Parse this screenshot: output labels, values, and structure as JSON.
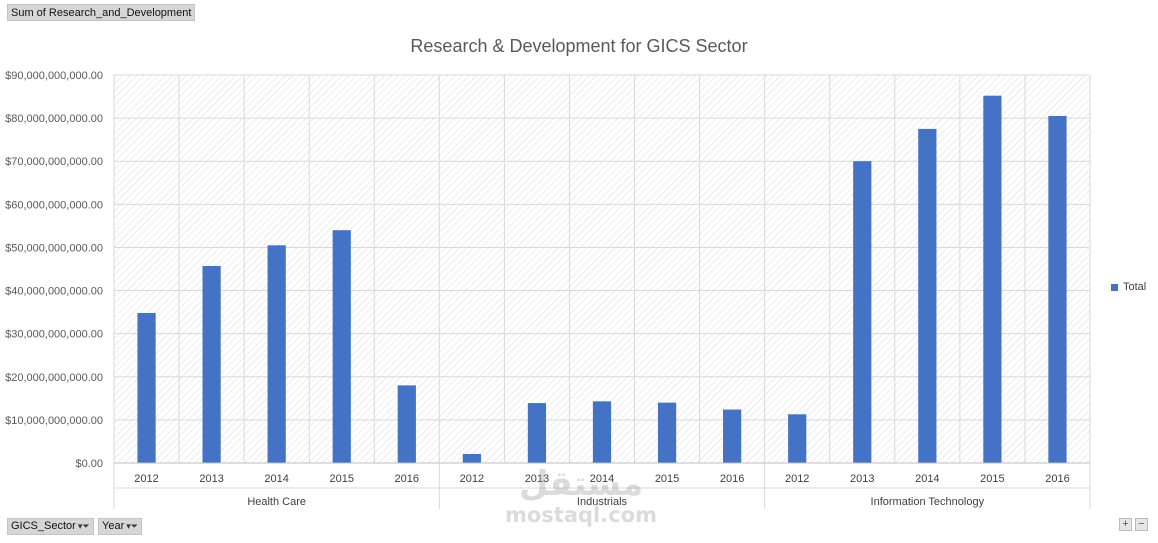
{
  "value_field_button": "Sum of Research_and_Development",
  "filters": [
    {
      "label": "GICS_Sector"
    },
    {
      "label": "Year"
    }
  ],
  "zoom": {
    "plus": "+",
    "minus": "−"
  },
  "watermark": {
    "arabic": "مستقل",
    "latin": "mostaql.com"
  },
  "colors": {
    "bar": "#4472c4",
    "grid": "#d9d9d9",
    "title": "#595959"
  },
  "chart_data": {
    "type": "bar",
    "title": "Research & Development for GICS Sector",
    "xlabel": "",
    "ylabel": "",
    "ylim": [
      0,
      90000000000
    ],
    "y_ticks": [
      0,
      10000000000,
      20000000000,
      30000000000,
      40000000000,
      50000000000,
      60000000000,
      70000000000,
      80000000000,
      90000000000
    ],
    "y_tick_labels": [
      "$0.00",
      "$10,000,000,000.00",
      "$20,000,000,000.00",
      "$30,000,000,000.00",
      "$40,000,000,000.00",
      "$50,000,000,000.00",
      "$60,000,000,000.00",
      "$70,000,000,000.00",
      "$80,000,000,000.00",
      "$90,000,000,000.00"
    ],
    "grid": true,
    "legend_position": "right",
    "groups": [
      {
        "name": "Health Care",
        "categories": [
          "2012",
          "2013",
          "2014",
          "2015",
          "2016"
        ],
        "values": [
          34800000000,
          45700000000,
          50500000000,
          54000000000,
          18000000000
        ]
      },
      {
        "name": "Industrials",
        "categories": [
          "2012",
          "2013",
          "2014",
          "2015",
          "2016"
        ],
        "values": [
          2100000000,
          13900000000,
          14300000000,
          14000000000,
          12400000000
        ]
      },
      {
        "name": "Information Technology",
        "categories": [
          "2012",
          "2013",
          "2014",
          "2015",
          "2016"
        ],
        "values": [
          11300000000,
          70000000000,
          77500000000,
          85200000000,
          80500000000
        ]
      }
    ],
    "series": [
      {
        "name": "Total"
      }
    ]
  }
}
